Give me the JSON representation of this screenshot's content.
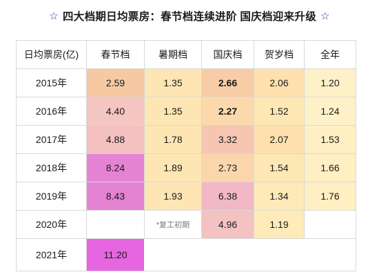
{
  "title": {
    "left_icon": "star-outline-icon",
    "text": "四大档期日均票房：春节档连续进阶 国庆档迎来升级",
    "right_icon": "star-outline-icon",
    "icon_color": "#2b2bb8"
  },
  "table": {
    "headers": [
      "日均票房(亿)",
      "春节档",
      "暑期档",
      "国庆档",
      "贺岁档",
      "全年"
    ],
    "rows": [
      {
        "year": "2015年",
        "spring": "2.59",
        "summer": "1.35",
        "national": "2.66",
        "newyear": "2.06",
        "annual": "1.20"
      },
      {
        "year": "2016年",
        "spring": "4.40",
        "summer": "1.35",
        "national": "2.27",
        "newyear": "1.52",
        "annual": "1.24"
      },
      {
        "year": "2017年",
        "spring": "4.88",
        "summer": "1.78",
        "national": "3.32",
        "newyear": "2.07",
        "annual": "1.53"
      },
      {
        "year": "2018年",
        "spring": "8.24",
        "summer": "1.89",
        "national": "2.73",
        "newyear": "1.54",
        "annual": "1.66"
      },
      {
        "year": "2019年",
        "spring": "8.43",
        "summer": "1.93",
        "national": "6.38",
        "newyear": "1.34",
        "annual": "1.76"
      },
      {
        "year": "2020年",
        "spring": "",
        "summer": "*复工初期",
        "national": "4.96",
        "newyear": "1.19",
        "annual": ""
      },
      {
        "year": "2021年",
        "spring": "11.20",
        "summer": "",
        "national": "",
        "newyear": "",
        "annual": ""
      }
    ],
    "colors": {
      "peach": "#f6c9a2",
      "light_orange": "#fde6b3",
      "pale_yellow": "#fff1c7",
      "pink": "#f2b8c6",
      "magenta": "#e583d3",
      "purple": "#e566e0",
      "light_pink": "#f4c5c1",
      "gridline": "#d8d8d8"
    }
  }
}
